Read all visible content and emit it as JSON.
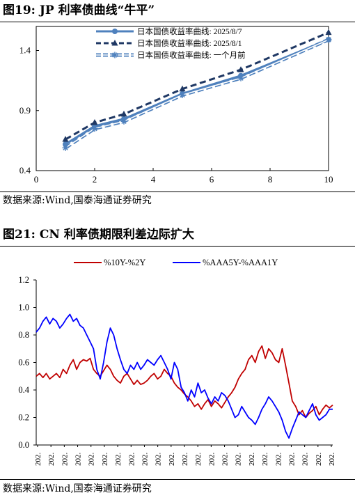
{
  "figure19": {
    "title": "图19:  JP 利率债曲线“牛平”",
    "source": "数据来源:Wind,国泰海通证券研究"
  },
  "figure21": {
    "title": "图21:  CN 利率债期限利差边际扩大",
    "source": "数据来源:Wind,国泰海通证券研究"
  },
  "colors": {
    "jp_aug7": "#4f81bd",
    "jp_aug1": "#1f3864",
    "jp_month": "#4f81bd",
    "cn_10y2y": "#c00000",
    "cn_aaa": "#0000ff"
  },
  "chart_data": [
    {
      "type": "line",
      "x": [
        1,
        2,
        3,
        5,
        7,
        10
      ],
      "xlim": [
        0,
        10
      ],
      "xticks": [
        "0",
        "2",
        "4",
        "6",
        "8",
        "10"
      ],
      "ylim": [
        0.4,
        1.6
      ],
      "yticks": [
        "0.4",
        "0.9",
        "1.4"
      ],
      "grid": false,
      "legend_position": "top-right",
      "series": [
        {
          "name": "日本国债收益率曲线: 2025/8/7",
          "values": [
            0.62,
            0.77,
            0.83,
            1.04,
            1.19,
            1.49
          ],
          "style": "solid",
          "marker": "circle"
        },
        {
          "name": "日本国债收益率曲线: 2025/8/1",
          "values": [
            0.66,
            0.8,
            0.87,
            1.08,
            1.24,
            1.55
          ],
          "style": "dashed",
          "marker": "triangle"
        },
        {
          "name": "日本国债收益率曲线: 一个月前",
          "values": [
            0.59,
            0.75,
            0.81,
            1.03,
            1.17,
            1.49
          ],
          "style": "double",
          "marker": "star"
        }
      ]
    },
    {
      "type": "line",
      "ylim": [
        0.0,
        1.2
      ],
      "yticks": [
        "0.0",
        "0.2",
        "0.4",
        "0.6",
        "0.8",
        "1.0",
        "1.2"
      ],
      "xtick_label": "202.",
      "xtick_count": 23,
      "grid": false,
      "legend_position": "top",
      "series": [
        {
          "name": "%10Y-%2Y",
          "values": [
            0.5,
            0.52,
            0.49,
            0.52,
            0.48,
            0.5,
            0.52,
            0.49,
            0.55,
            0.52,
            0.58,
            0.62,
            0.55,
            0.6,
            0.62,
            0.61,
            0.63,
            0.55,
            0.52,
            0.5,
            0.54,
            0.58,
            0.55,
            0.5,
            0.47,
            0.45,
            0.5,
            0.52,
            0.48,
            0.44,
            0.47,
            0.44,
            0.45,
            0.47,
            0.5,
            0.52,
            0.48,
            0.5,
            0.55,
            0.52,
            0.5,
            0.45,
            0.42,
            0.4,
            0.37,
            0.35,
            0.32,
            0.28,
            0.3,
            0.26,
            0.3,
            0.33,
            0.28,
            0.32,
            0.3,
            0.27,
            0.31,
            0.35,
            0.38,
            0.42,
            0.48,
            0.52,
            0.55,
            0.62,
            0.65,
            0.6,
            0.68,
            0.72,
            0.63,
            0.7,
            0.67,
            0.62,
            0.6,
            0.7,
            0.58,
            0.45,
            0.32,
            0.28,
            0.22,
            0.25,
            0.2,
            0.23,
            0.25,
            0.28,
            0.22,
            0.26,
            0.29,
            0.27,
            0.29
          ]
        },
        {
          "name": "%AAA5Y-%AAA1Y",
          "values": [
            0.82,
            0.85,
            0.9,
            0.93,
            0.88,
            0.92,
            0.9,
            0.85,
            0.88,
            0.92,
            0.95,
            0.9,
            0.92,
            0.87,
            0.85,
            0.8,
            0.75,
            0.7,
            0.55,
            0.48,
            0.6,
            0.75,
            0.85,
            0.8,
            0.7,
            0.62,
            0.55,
            0.52,
            0.58,
            0.55,
            0.6,
            0.55,
            0.58,
            0.62,
            0.6,
            0.58,
            0.62,
            0.65,
            0.6,
            0.55,
            0.48,
            0.6,
            0.55,
            0.42,
            0.38,
            0.32,
            0.4,
            0.35,
            0.45,
            0.38,
            0.4,
            0.34,
            0.3,
            0.35,
            0.32,
            0.38,
            0.36,
            0.32,
            0.26,
            0.2,
            0.22,
            0.28,
            0.24,
            0.2,
            0.18,
            0.15,
            0.2,
            0.26,
            0.3,
            0.35,
            0.32,
            0.28,
            0.24,
            0.18,
            0.1,
            0.05,
            0.12,
            0.18,
            0.24,
            0.22,
            0.2,
            0.25,
            0.3,
            0.22,
            0.18,
            0.2,
            0.22,
            0.26,
            0.26
          ]
        }
      ]
    }
  ]
}
